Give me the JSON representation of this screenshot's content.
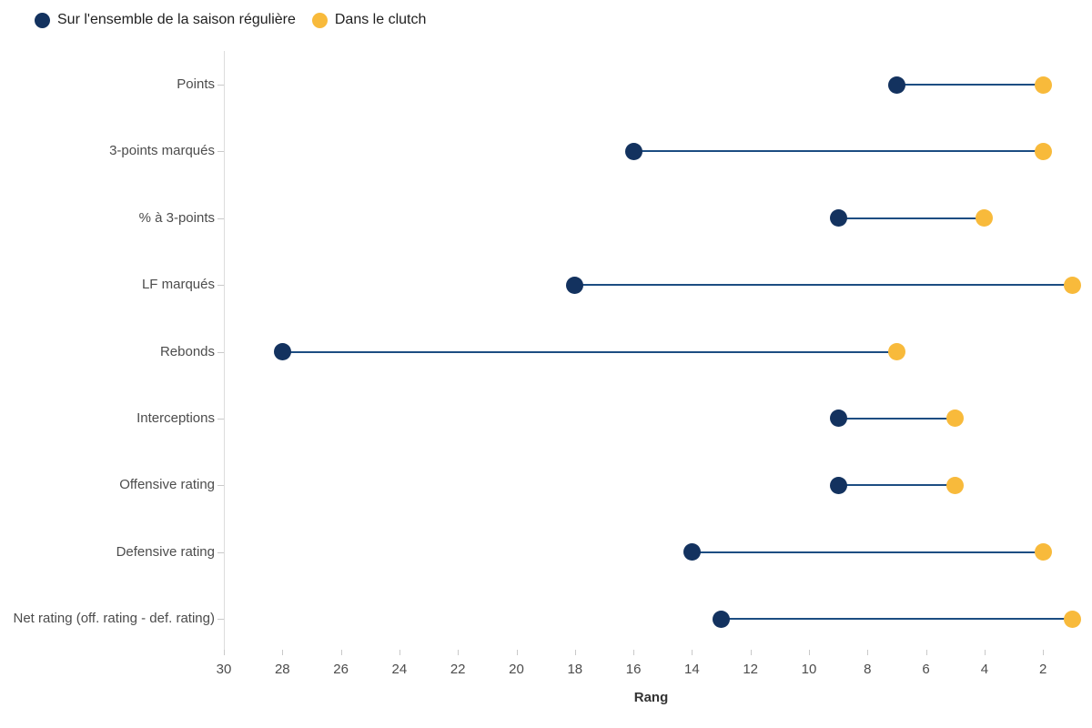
{
  "chart_data": {
    "type": "dumbbell",
    "title": "",
    "xlabel": "Rang",
    "x_ticks": [
      30,
      28,
      26,
      24,
      22,
      20,
      18,
      16,
      14,
      12,
      10,
      8,
      6,
      4,
      2
    ],
    "x_axis": {
      "left_value": 30,
      "right_value": 1,
      "reversed": true,
      "grid": false
    },
    "legend_position": "top-left",
    "categories": [
      "Points",
      "3-points marqués",
      "% à 3-points",
      "LF marqués",
      "Rebonds",
      "Interceptions",
      "Offensive rating",
      "Defensive rating",
      "Net rating (off. rating - def. rating)"
    ],
    "series": [
      {
        "name": "Sur l'ensemble de la saison régulière",
        "color": "#13325f",
        "values": [
          7,
          16,
          9,
          18,
          28,
          9,
          9,
          14,
          13
        ]
      },
      {
        "name": "Dans le clutch",
        "color": "#f8ba3b",
        "values": [
          2,
          2,
          4,
          1,
          7,
          5,
          5,
          2,
          1
        ]
      }
    ],
    "colors": {
      "connector": "#1c4d82",
      "axis_line": "#dcdcdc",
      "tick": "#c9c9c9",
      "label_text": "#4c4c4c"
    }
  }
}
